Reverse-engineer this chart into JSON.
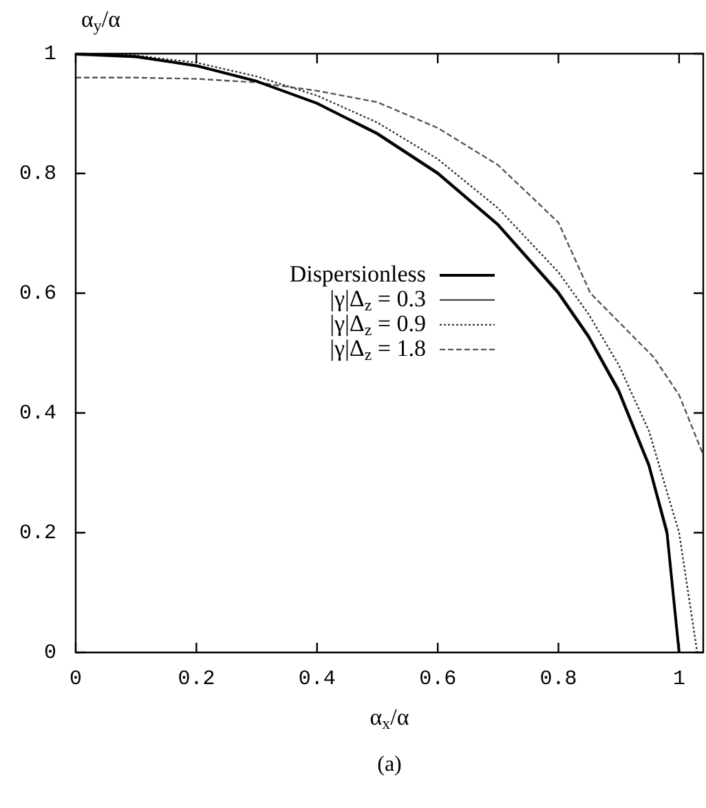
{
  "chart_data": {
    "type": "line",
    "xlabel": "α$_{x}$/α",
    "ylabel": "α$_{y}$/α",
    "annotations": [
      "(a)"
    ],
    "xlim": [
      0,
      1.04
    ],
    "ylim": [
      0,
      1
    ],
    "xticks": [
      0,
      0.2,
      0.4,
      0.6,
      0.8,
      1
    ],
    "yticks": [
      0,
      0.2,
      0.4,
      0.6,
      0.8,
      1
    ],
    "legend": "left",
    "marker": "none",
    "series": [
      {
        "name": "Dispersionless",
        "color": "#000000",
        "line_style": "solid",
        "x": [
          0,
          0.1,
          0.2,
          0.3,
          0.4,
          0.5,
          0.6,
          0.7,
          0.8,
          0.85,
          0.9,
          0.95,
          0.98,
          1.0
        ],
        "values": [
          1,
          0.995,
          0.98,
          0.954,
          0.917,
          0.866,
          0.8,
          0.714,
          0.6,
          0.527,
          0.436,
          0.312,
          0.199,
          0
        ]
      },
      {
        "name": "|γ|Δ$_{z}$ = 0.3",
        "color": "#444444",
        "line_style": "solid",
        "x": [
          0,
          0.1,
          0.2,
          0.3,
          0.4,
          0.5,
          0.6,
          0.7,
          0.8,
          0.85,
          0.9,
          0.95,
          0.98,
          1.0
        ],
        "values": [
          0.998,
          0.994,
          0.979,
          0.954,
          0.918,
          0.868,
          0.802,
          0.716,
          0.603,
          0.53,
          0.44,
          0.316,
          0.205,
          0
        ]
      },
      {
        "name": "|γ|Δ$_{z}$ = 0.9",
        "color": "#333333",
        "line_style": "dotted",
        "x": [
          0,
          0.1,
          0.2,
          0.3,
          0.4,
          0.5,
          0.6,
          0.7,
          0.8,
          0.85,
          0.9,
          0.95,
          1.0,
          1.03
        ],
        "values": [
          1,
          0.997,
          0.985,
          0.962,
          0.93,
          0.885,
          0.824,
          0.742,
          0.635,
          0.565,
          0.48,
          0.37,
          0.2,
          0
        ]
      },
      {
        "name": "|γ|Δ$_{z}$ = 1.8",
        "color": "#555555",
        "line_style": "dashed",
        "x": [
          0,
          0.1,
          0.2,
          0.3,
          0.4,
          0.5,
          0.6,
          0.7,
          0.8,
          0.853,
          0.9,
          0.958,
          1.0,
          1.04
        ],
        "values": [
          0.96,
          0.96,
          0.958,
          0.952,
          0.938,
          0.919,
          0.876,
          0.814,
          0.718,
          0.6,
          0.552,
          0.493,
          0.43,
          0.33
        ]
      }
    ]
  }
}
